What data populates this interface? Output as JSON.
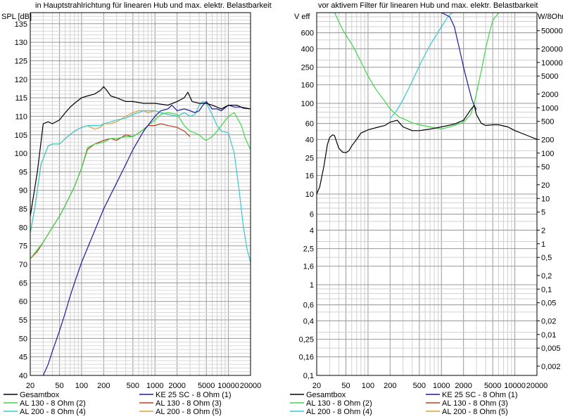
{
  "chart_data": [
    {
      "type": "line",
      "title": "in Hauptstrahlrichtung für linearen Hub und max. elektr. Belastbarkeit",
      "ylabel": "SPL [dB]",
      "xscale": "log",
      "xlim": [
        20,
        20000
      ],
      "ylim": [
        40,
        138
      ],
      "grid": true,
      "x_ticks": [
        20,
        50,
        100,
        200,
        500,
        1000,
        2000,
        5000,
        10000,
        20000
      ],
      "x_tick_labels": [
        "20",
        "50",
        "100",
        "200",
        "500",
        "1000",
        "2000",
        "5000",
        "10000",
        "20000"
      ],
      "y_ticks": [
        40,
        45,
        50,
        55,
        60,
        65,
        70,
        75,
        80,
        85,
        90,
        95,
        100,
        105,
        110,
        115,
        120,
        125,
        130,
        135
      ],
      "y_tick_labels": [
        "40",
        "45",
        "50",
        "55",
        "60",
        "65",
        "70",
        "75",
        "80",
        "85",
        "90",
        "95",
        "100",
        "105",
        "110",
        "115",
        "120",
        "125",
        "130",
        "135"
      ],
      "series": [
        {
          "name": "Gesamtbox",
          "color": "#000000",
          "x": [
            20,
            25,
            30,
            35,
            40,
            50,
            60,
            70,
            80,
            100,
            120,
            150,
            180,
            200,
            220,
            250,
            300,
            400,
            500,
            700,
            1000,
            1500,
            2000,
            2500,
            2800,
            3200,
            4000,
            5000,
            6000,
            7000,
            8000,
            10000,
            13000,
            16000,
            20000
          ],
          "y": [
            83,
            95,
            108,
            108.5,
            108,
            109,
            111,
            112.5,
            113.5,
            115,
            115.5,
            116,
            117,
            118,
            117,
            115.5,
            115,
            114,
            114,
            113.5,
            113.5,
            113,
            114,
            115,
            116.5,
            114,
            113.5,
            113.5,
            113,
            112.5,
            112,
            113,
            113,
            112.2,
            112
          ]
        },
        {
          "name": "KE 25 SC - 8 Ohm   (1)",
          "color": "#1a1aa0",
          "x": [
            30,
            35,
            40,
            50,
            60,
            70,
            80,
            100,
            150,
            200,
            300,
            400,
            500,
            700,
            1000,
            1200,
            1500,
            1700,
            2000,
            2500,
            3000,
            3500,
            4000,
            4500,
            5000,
            6000,
            7000,
            8000,
            10000,
            12000,
            15000,
            20000
          ],
          "y": [
            40,
            43,
            46.5,
            52,
            57,
            61.5,
            65,
            70.5,
            79,
            85,
            92,
            97,
            101,
            106,
            110,
            111.5,
            112,
            113,
            111.5,
            112,
            111.5,
            111,
            111.5,
            113,
            114,
            112,
            112,
            111.5,
            113,
            112.5,
            112.5,
            112
          ]
        },
        {
          "name": "AL 130 - 8 Ohm (2)",
          "color": "#3fd64a",
          "x": [
            20,
            30,
            40,
            50,
            60,
            80,
            100,
            120,
            150,
            200,
            250,
            300,
            400,
            500,
            600,
            700,
            800,
            1000,
            1200,
            1500,
            2000,
            2500,
            3000,
            3500,
            4000,
            4500,
            5000,
            6000,
            7000,
            8000,
            10000,
            12000,
            15000,
            17000,
            20000
          ],
          "y": [
            71.5,
            76,
            80,
            83,
            86,
            91,
            96,
            101.5,
            102.5,
            103,
            104,
            104,
            104.5,
            104.5,
            105.5,
            106.5,
            107.5,
            109,
            110.5,
            111,
            110.5,
            107.5,
            106,
            105.5,
            105,
            104,
            103.5,
            104.5,
            106,
            107.5,
            110,
            111,
            107.5,
            104,
            101
          ]
        },
        {
          "name": "AL 130 - 8 Ohm (3)",
          "color": "#b3401f",
          "x": [
            20,
            25,
            30,
            40,
            50,
            60,
            80,
            100,
            120,
            150,
            200,
            250,
            300,
            400,
            500,
            600,
            700,
            800,
            1000,
            1200,
            1500,
            2000,
            2500,
            3000
          ],
          "y": [
            71.5,
            73.5,
            76,
            80,
            83,
            86,
            91,
            96,
            101,
            102.5,
            103.5,
            104,
            103.5,
            105,
            104.5,
            105.5,
            106.5,
            107.5,
            107.5,
            108,
            107.5,
            107,
            106,
            104.5
          ]
        },
        {
          "name": "AL 200 - 8 Ohm (4)",
          "color": "#39c7d1",
          "x": [
            20,
            23,
            28,
            35,
            40,
            50,
            60,
            80,
            100,
            120,
            150,
            180,
            200,
            250,
            300,
            400,
            500,
            600,
            700,
            800,
            1000,
            1200,
            1500,
            2000,
            2500,
            3000,
            3500,
            4000,
            4500,
            5000,
            6000,
            7000,
            8000,
            10000,
            12000,
            14000,
            16000,
            18000,
            20000
          ],
          "y": [
            78.5,
            85,
            97,
            102,
            102.5,
            102.5,
            104,
            106,
            107,
            107.5,
            107.5,
            107.5,
            108,
            108.5,
            109,
            109.5,
            110.5,
            111,
            111.5,
            111.5,
            111.5,
            111,
            110.5,
            110,
            111,
            110,
            110.5,
            113,
            114,
            113.5,
            110.5,
            107.5,
            106,
            105.5,
            100,
            90,
            80,
            74,
            70.5
          ]
        },
        {
          "name": "AL 200 - 8 Ohm (5)",
          "color": "#d9a03c",
          "x": [
            20,
            23,
            28,
            35,
            40,
            50,
            60,
            80,
            100,
            120,
            150,
            180,
            200,
            250,
            300,
            400,
            500,
            600,
            700,
            800,
            1000,
            1200,
            1500,
            2000,
            2500,
            3000
          ],
          "y": [
            78.5,
            85,
            97,
            102,
            102.5,
            102.5,
            104,
            106,
            107,
            107.5,
            106.5,
            107,
            108,
            108,
            108.5,
            110,
            111,
            111.5,
            111.5,
            111,
            111.5,
            111,
            110.5,
            110,
            111,
            110
          ]
        }
      ]
    },
    {
      "type": "line",
      "title": "vor aktivem Filter für linearen Hub und max. elektr. Belastbarkeit",
      "ylabel": "V eff",
      "y2label": "W/8Ohm",
      "xscale": "log",
      "yscale": "log",
      "xlim": [
        20,
        20000
      ],
      "ylim": [
        0.1,
        1000
      ],
      "grid": true,
      "x_ticks": [
        20,
        50,
        100,
        200,
        500,
        1000,
        2000,
        5000,
        10000,
        20000
      ],
      "x_tick_labels": [
        "20",
        "50",
        "100",
        "200",
        "500",
        "1000",
        "2000",
        "5000",
        "10000",
        "20000"
      ],
      "y_ticks": [
        0.1,
        0.16,
        0.25,
        0.4,
        0.6,
        1,
        1.6,
        2.5,
        4,
        6,
        10,
        16,
        25,
        40,
        60,
        100,
        160,
        250,
        400,
        600
      ],
      "y_tick_labels": [
        "0,1",
        "0,16",
        "0,25",
        "0,4",
        "0,6",
        "1",
        "1,6",
        "2,5",
        "4",
        "6",
        "10",
        "16",
        "25",
        "40",
        "60",
        "100",
        "160",
        "250",
        "400",
        "600"
      ],
      "y2_ticks": [
        0.002,
        0.005,
        0.01,
        0.02,
        0.05,
        0.1,
        0.2,
        0.5,
        1,
        2,
        5,
        10,
        20,
        50,
        100,
        200,
        500,
        1000,
        2000,
        5000,
        10000,
        20000,
        50000
      ],
      "y2_tick_labels": [
        "0,002",
        "0,005",
        "0,01",
        "0,02",
        "0,05",
        "0,1",
        "0,2",
        "0,5",
        "1",
        "2",
        "5",
        "10",
        "20",
        "50",
        "100",
        "200",
        "500",
        "1000",
        "2000",
        "5000",
        "10000",
        "20000",
        "50000"
      ],
      "series": [
        {
          "name": "Gesamtbox",
          "color": "#000000",
          "x": [
            20,
            22,
            25,
            28,
            30,
            33,
            35,
            38,
            40,
            45,
            50,
            55,
            60,
            70,
            80,
            100,
            130,
            170,
            200,
            250,
            300,
            400,
            500,
            700,
            1000,
            1500,
            2000,
            2500,
            2800,
            3000,
            3500,
            4000,
            5000,
            6000,
            8000,
            10000,
            15000,
            20000
          ],
          "y": [
            10,
            12,
            20,
            35,
            42,
            45,
            44,
            36,
            32,
            29,
            28.5,
            30,
            34,
            40,
            47,
            51,
            54,
            57,
            62,
            65,
            55,
            50,
            50,
            52,
            55,
            59,
            65,
            85,
            95,
            75,
            60,
            57,
            58,
            58,
            55,
            50,
            44,
            40
          ]
        },
        {
          "name": "KE 25 SC - 8 Ohm   (1)",
          "color": "#1a1aa0",
          "x": [
            1000,
            1300,
            1500,
            1700,
            2000,
            2300,
            2600,
            2800,
            3000
          ],
          "y": [
            1000,
            900,
            700,
            450,
            250,
            160,
            110,
            95,
            85
          ]
        },
        {
          "name": "AL 130 - 8 Ohm (2)",
          "color": "#3fd64a",
          "x": [
            35,
            45,
            60,
            80,
            100,
            130,
            170,
            200,
            230,
            270,
            300,
            400,
            500,
            700,
            1000,
            1500,
            2000,
            2500,
            2800,
            3500,
            4000,
            4500,
            5000,
            6000
          ],
          "y": [
            1000,
            650,
            450,
            290,
            200,
            140,
            105,
            87,
            78,
            70,
            68,
            61,
            58,
            55,
            52,
            57,
            62,
            75,
            100,
            230,
            400,
            600,
            820,
            1000
          ]
        },
        {
          "name": "AL 130 - 8 Ohm (3)",
          "color": "#b3401f",
          "x": [],
          "y": []
        },
        {
          "name": "AL 200 - 8 Ohm (4)",
          "color": "#39c7d1",
          "x": [
            200,
            250,
            300,
            400,
            500,
            700,
            1000,
            1200,
            1400
          ],
          "y": [
            68,
            85,
            110,
            175,
            260,
            440,
            700,
            880,
            1000
          ]
        },
        {
          "name": "AL 200 - 8 Ohm (5)",
          "color": "#d9a03c",
          "x": [],
          "y": []
        }
      ]
    }
  ]
}
